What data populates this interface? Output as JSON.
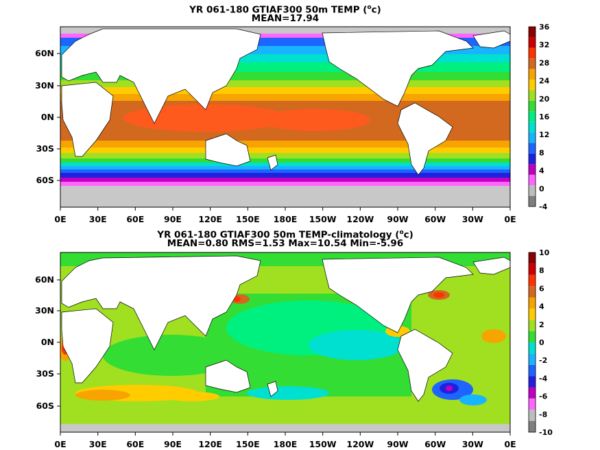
{
  "panels": [
    {
      "title": "YR 061-180 GTIAF300 50m TEMP (",
      "unit_sup": "o",
      "unit_tail": "c)",
      "stats": "MEAN=17.94",
      "colorbar_ticks": [
        "36",
        "32",
        "28",
        "24",
        "20",
        "16",
        "12",
        "8",
        "4",
        "0",
        "-4"
      ]
    },
    {
      "title": "YR 061-180 GTIAF300 50m TEMP-climatology (",
      "unit_sup": "o",
      "unit_tail": "c)",
      "stats": "MEAN=0.80   RMS=1.53   Max=10.54   Min=-5.96",
      "colorbar_ticks": [
        "10",
        "8",
        "6",
        "4",
        "2",
        "0",
        "-2",
        "-4",
        "-6",
        "-8",
        "-10"
      ]
    }
  ],
  "x_ticks": [
    "0E",
    "30E",
    "60E",
    "90E",
    "120E",
    "150E",
    "180E",
    "150W",
    "120W",
    "90W",
    "60W",
    "30W",
    "0E"
  ],
  "y_ticks": [
    "60N",
    "30N",
    "0N",
    "30S",
    "60S"
  ],
  "colors": {
    "land": "#ffffff",
    "ice": "#c8c8c8",
    "temp_scale": [
      "#7f7f7f",
      "#bdbdbd",
      "#ff66ff",
      "#c000c0",
      "#2020e0",
      "#1e64ff",
      "#19b4ff",
      "#00e0d0",
      "#00f080",
      "#33dd33",
      "#a0e020",
      "#ffcc00",
      "#f7a400",
      "#d2691e",
      "#ff3300",
      "#cc0000",
      "#8b0000"
    ],
    "anom_scale": [
      "#7f7f7f",
      "#bdbdbd",
      "#ff66ff",
      "#c000c0",
      "#2020e0",
      "#1e64ff",
      "#19b4ff",
      "#00e0d0",
      "#33dd33",
      "#a0e020",
      "#ffcc00",
      "#f7a400",
      "#d2691e",
      "#ff3300",
      "#cc0000",
      "#8b0000"
    ]
  },
  "chart_data": [
    {
      "type": "heatmap",
      "title": "YR 061-180 GTIAF300 50m TEMP (oc)",
      "subtitle": "MEAN=17.94",
      "x_ticks": [
        "0E",
        "30E",
        "60E",
        "90E",
        "120E",
        "150E",
        "180E",
        "150W",
        "120W",
        "90W",
        "60W",
        "30W",
        "0E"
      ],
      "y_ticks": [
        "60N",
        "30N",
        "0N",
        "30S",
        "60S"
      ],
      "colorbar": {
        "min": -4,
        "max": 36,
        "ticks": [
          36,
          32,
          28,
          24,
          20,
          16,
          12,
          8,
          4,
          0,
          -4
        ]
      },
      "mean": 17.94
    },
    {
      "type": "heatmap",
      "title": "YR 061-180 GTIAF300 50m TEMP-climatology (oc)",
      "subtitle": "MEAN=0.80   RMS=1.53   Max=10.54   Min=-5.96",
      "x_ticks": [
        "0E",
        "30E",
        "60E",
        "90E",
        "120E",
        "150E",
        "180E",
        "150W",
        "120W",
        "90W",
        "60W",
        "30W",
        "0E"
      ],
      "y_ticks": [
        "60N",
        "30N",
        "0N",
        "30S",
        "60S"
      ],
      "colorbar": {
        "min": -10,
        "max": 10,
        "ticks": [
          10,
          8,
          6,
          4,
          2,
          0,
          -2,
          -4,
          -6,
          -8,
          -10
        ]
      },
      "mean": 0.8,
      "rms": 1.53,
      "max": 10.54,
      "min": -5.96
    }
  ]
}
